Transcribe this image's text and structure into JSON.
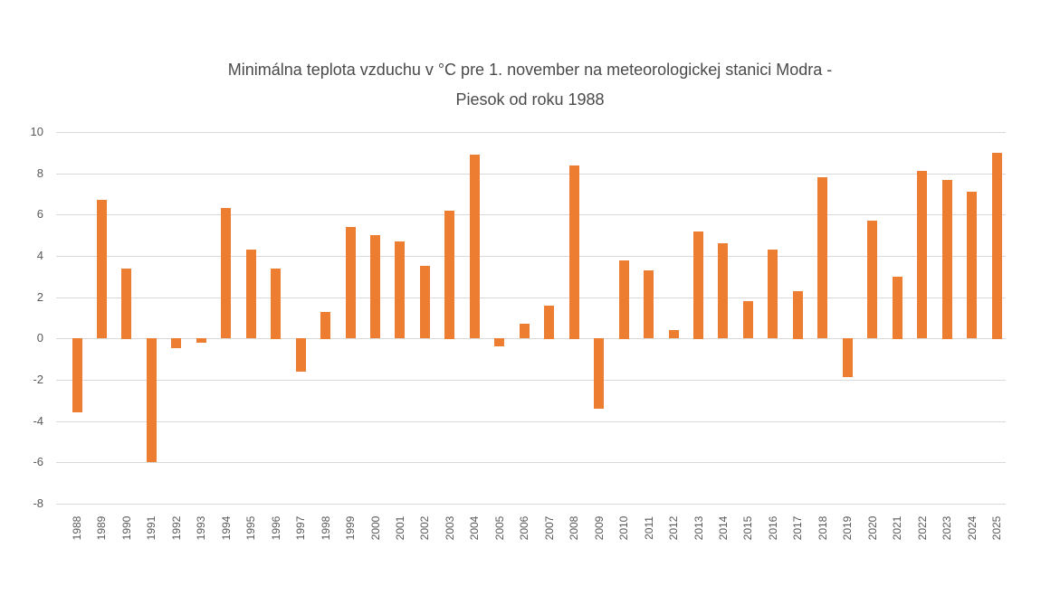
{
  "title": {
    "line1": "Minimálna teplota vzduchu v °C  pre 1. november na meteorologickej stanici Modra -",
    "line2": "Piesok od roku 1988"
  },
  "chart_data": {
    "type": "bar",
    "title": "Minimálna teplota vzduchu v °C  pre 1. november na meteorologickej stanici Modra - Piesok od roku 1988",
    "xlabel": "",
    "ylabel": "",
    "categories": [
      "1988",
      "1989",
      "1990",
      "1991",
      "1992",
      "1993",
      "1994",
      "1995",
      "1996",
      "1997",
      "1998",
      "1999",
      "2000",
      "2001",
      "2002",
      "2003",
      "2004",
      "2005",
      "2006",
      "2007",
      "2008",
      "2009",
      "2010",
      "2011",
      "2012",
      "2013",
      "2014",
      "2015",
      "2016",
      "2017",
      "2018",
      "2019",
      "2020",
      "2021",
      "2022",
      "2023",
      "2024",
      "2025"
    ],
    "values": [
      -3.6,
      6.7,
      3.4,
      -6.0,
      -0.5,
      -0.2,
      6.3,
      4.3,
      3.4,
      -1.6,
      1.3,
      5.4,
      5.0,
      4.7,
      3.5,
      6.2,
      8.9,
      -0.4,
      0.7,
      1.6,
      8.4,
      -3.4,
      3.8,
      3.3,
      0.4,
      5.2,
      4.6,
      1.8,
      4.3,
      2.3,
      7.8,
      -1.9,
      5.7,
      3.0,
      8.1,
      7.7,
      7.1,
      9.0
    ],
    "ylim": [
      -8,
      10
    ],
    "yticks": [
      10,
      8,
      6,
      4,
      2,
      0,
      -2,
      -4,
      -6,
      -8
    ],
    "grid": true,
    "legend": false,
    "colors": {
      "bar": "#ED7D31",
      "gridline": "#D9D9D9",
      "axis_text": "#595959",
      "title_text": "#4a4a4a",
      "background": "#FFFFFF"
    }
  }
}
